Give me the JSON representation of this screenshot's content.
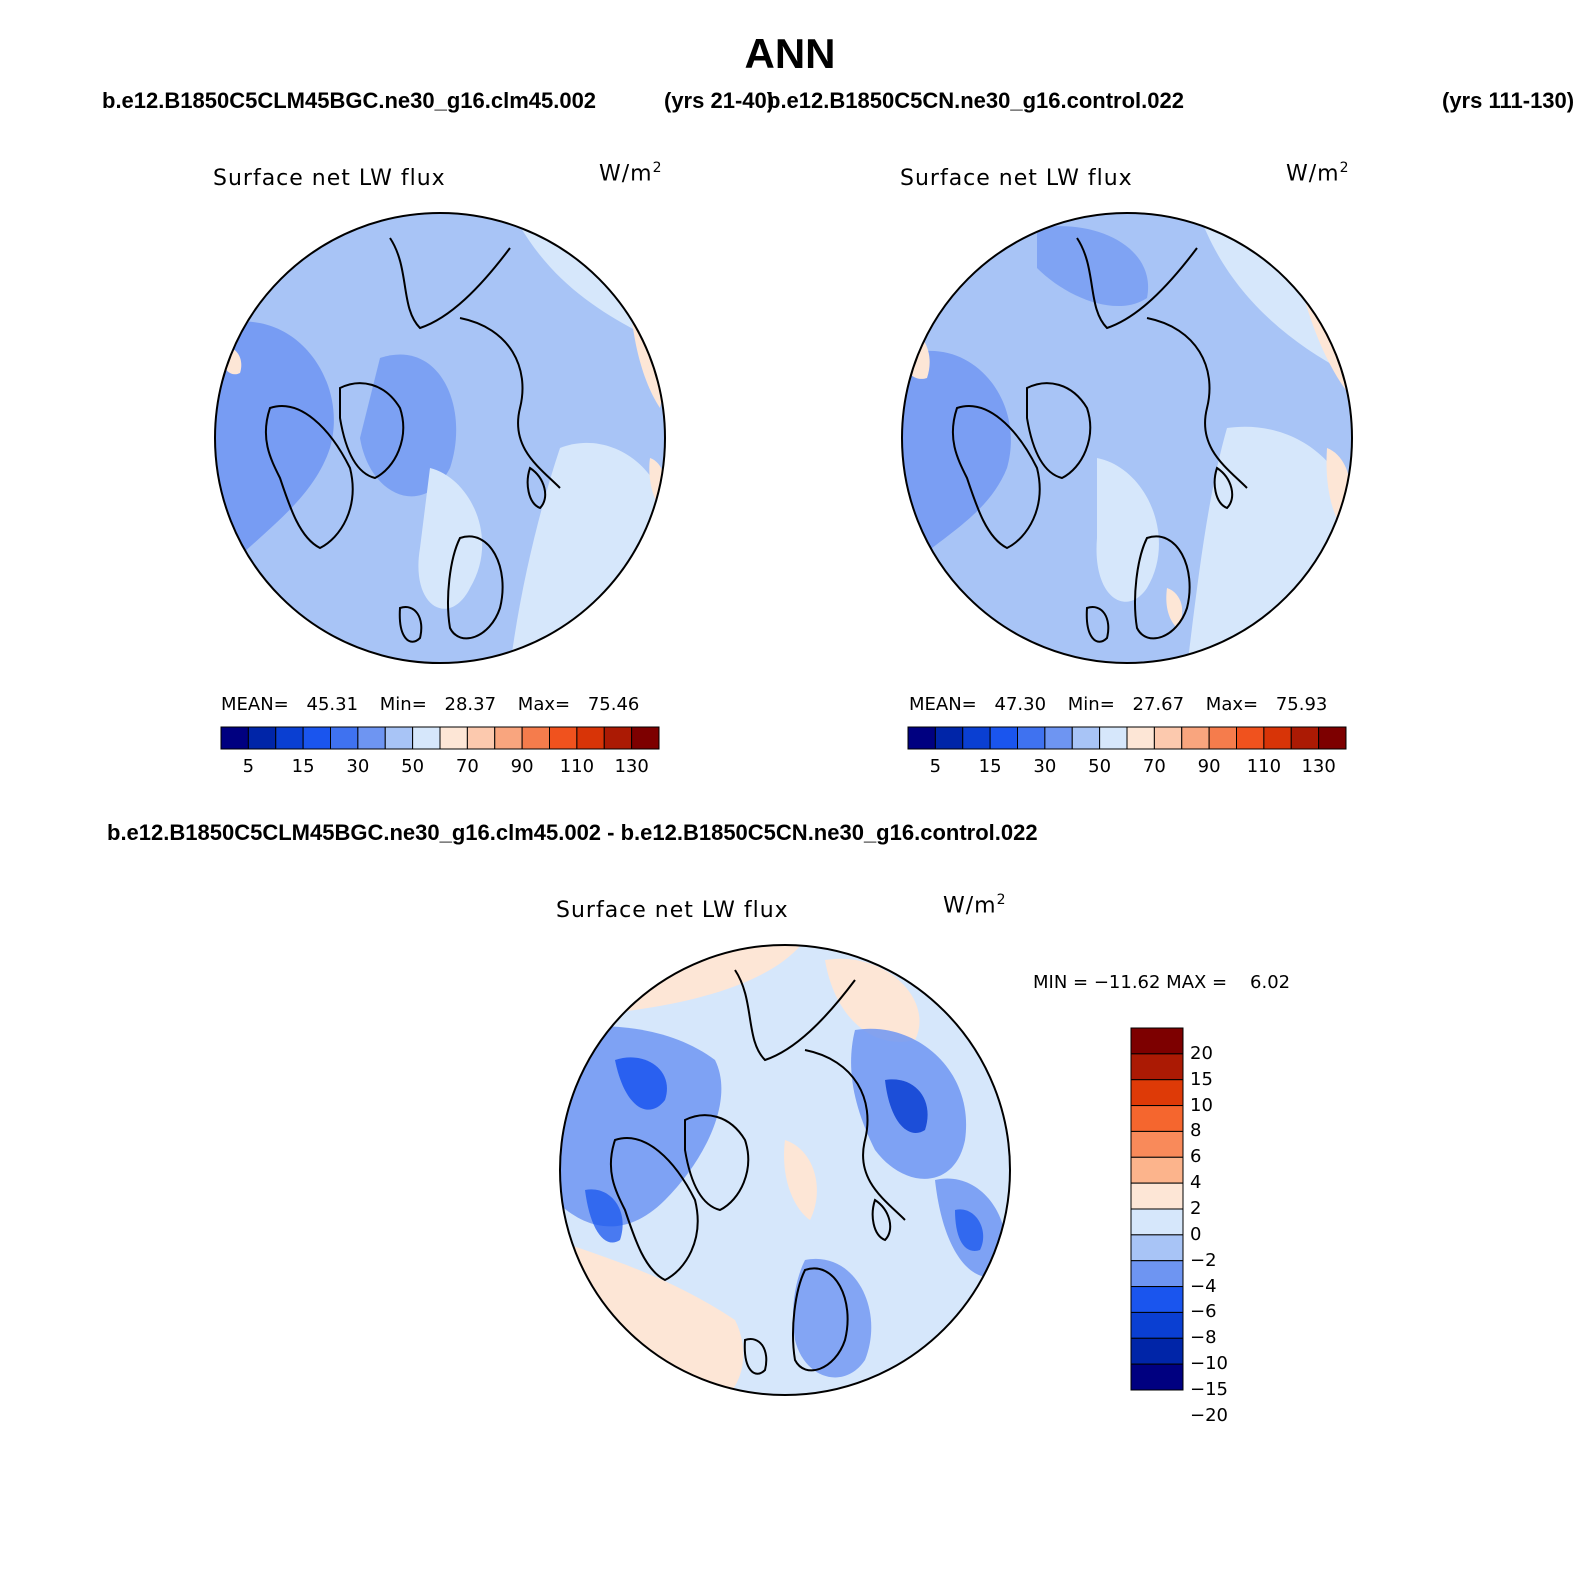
{
  "title": "ANN",
  "panels": [
    {
      "case": "b.e12.B1850C5CLM45BGC.ne30_g16.clm45.002",
      "years": "(yrs 21-40)",
      "variable": "Surface net LW flux",
      "units": "W/m",
      "units_sup": "2",
      "mean_label": "MEAN=",
      "mean": "45.31",
      "min_label": "Min=",
      "min": "28.37",
      "max_label": "Max=",
      "max": "75.46"
    },
    {
      "case": "b.e12.B1850C5CN.ne30_g16.control.022",
      "years": "(yrs 111-130)",
      "variable": "Surface net LW flux",
      "units": "W/m",
      "units_sup": "2",
      "mean_label": "MEAN=",
      "mean": "47.30",
      "min_label": "Min=",
      "min": "27.67",
      "max_label": "Max=",
      "max": "75.93"
    }
  ],
  "diff": {
    "title": "b.e12.B1850C5CLM45BGC.ne30_g16.clm45.002 - b.e12.B1850C5CN.ne30_g16.control.022",
    "variable": "Surface net LW flux",
    "units": "W/m",
    "units_sup": "2",
    "minmax": "MIN = −11.62 MAX =    6.02"
  },
  "abs_colorbar": {
    "colors": [
      "#000080",
      "#0025a8",
      "#0a3fd2",
      "#1a55ee",
      "#3f72f0",
      "#6e95f2",
      "#a8c4f6",
      "#d6e7fb",
      "#fde6d6",
      "#fcc9ae",
      "#f9a57e",
      "#f57c4c",
      "#f0521e",
      "#d83407",
      "#ab1a04",
      "#7d0000"
    ],
    "labels": [
      "5",
      "15",
      "30",
      "50",
      "70",
      "90",
      "110",
      "130"
    ]
  },
  "diff_colorbar": {
    "colors": [
      "#000080",
      "#0025a8",
      "#0a3fd2",
      "#1a55ee",
      "#6e95f2",
      "#a8c4f6",
      "#d6e7fb",
      "#fde6d6",
      "#fcb48c",
      "#f98a5a",
      "#f5662e",
      "#de3a07",
      "#ab1a04",
      "#7d0000"
    ],
    "labels": [
      "20",
      "15",
      "10",
      "8",
      "6",
      "4",
      "2",
      "0",
      "−2",
      "−4",
      "−6",
      "−8",
      "−10",
      "−15",
      "−20"
    ]
  },
  "chart_data": [
    {
      "type": "heatmap",
      "title": "Surface net LW flux",
      "subtitle": "b.e12.B1850C5CLM45BGC.ne30_g16.clm45.002 (yrs 21-40)",
      "units": "W/m2",
      "projection": "north polar stereographic",
      "stats": {
        "mean": 45.31,
        "min": 28.37,
        "max": 75.46
      },
      "levels": [
        5,
        10,
        15,
        20,
        30,
        40,
        50,
        60,
        70,
        80,
        90,
        100,
        110,
        120,
        130
      ]
    },
    {
      "type": "heatmap",
      "title": "Surface net LW flux",
      "subtitle": "b.e12.B1850C5CN.ne30_g16.control.022 (yrs 111-130)",
      "units": "W/m2",
      "projection": "north polar stereographic",
      "stats": {
        "mean": 47.3,
        "min": 27.67,
        "max": 75.93
      },
      "levels": [
        5,
        10,
        15,
        20,
        30,
        40,
        50,
        60,
        70,
        80,
        90,
        100,
        110,
        120,
        130
      ]
    },
    {
      "type": "heatmap",
      "title": "Surface net LW flux",
      "subtitle": "b.e12.B1850C5CLM45BGC.ne30_g16.clm45.002 - b.e12.B1850C5CN.ne30_g16.control.022",
      "units": "W/m2",
      "projection": "north polar stereographic",
      "stats": {
        "min": -11.62,
        "max": 6.02
      },
      "levels": [
        -20,
        -15,
        -10,
        -8,
        -6,
        -4,
        -2,
        0,
        2,
        4,
        6,
        8,
        10,
        15,
        20
      ]
    }
  ]
}
